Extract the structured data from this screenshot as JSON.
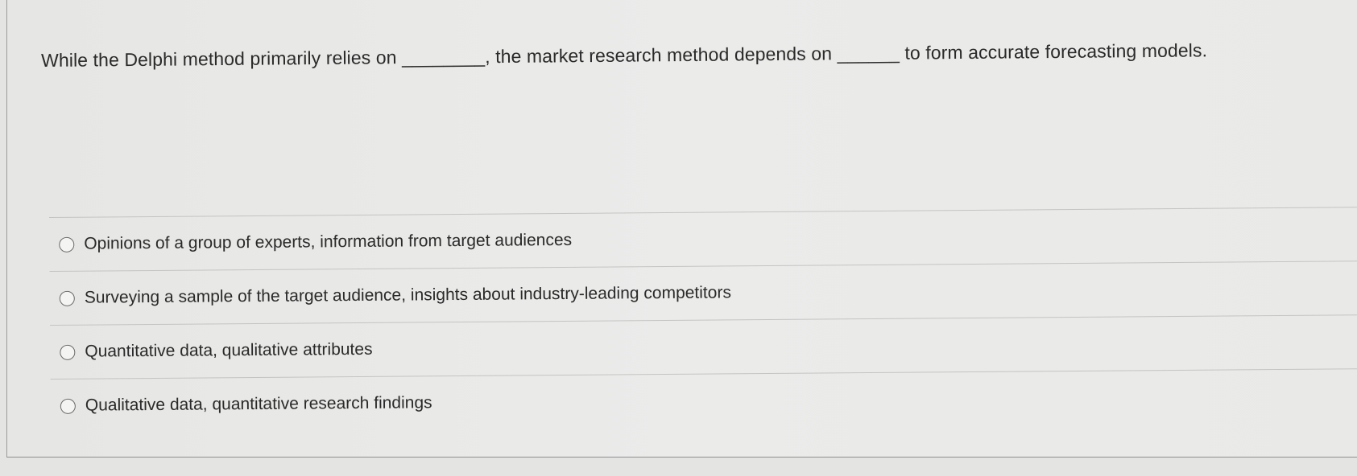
{
  "question": {
    "text": "While the Delphi method primarily relies on ________, the market research method depends on ______ to form accurate forecasting models."
  },
  "options": [
    {
      "label": "Opinions of a group of experts, information from target audiences",
      "selected": false
    },
    {
      "label": "Surveying a sample of the target audience, insights about industry-leading competitors",
      "selected": false
    },
    {
      "label": "Quantitative data, qualitative attributes",
      "selected": false
    },
    {
      "label": "Qualitative data, quantitative research findings",
      "selected": false
    }
  ]
}
